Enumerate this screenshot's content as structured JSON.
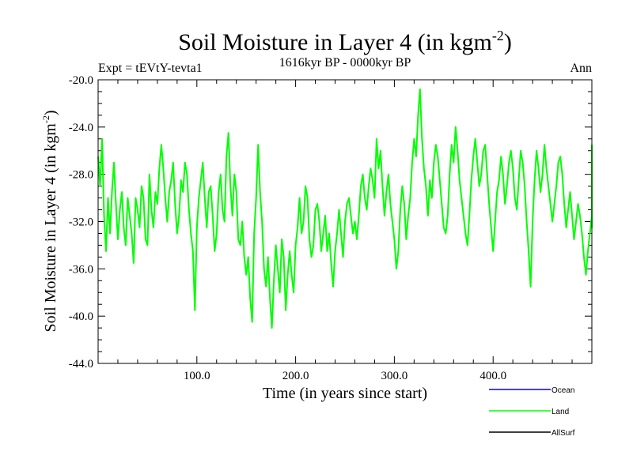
{
  "chart_data": {
    "type": "line",
    "title": "Soil Moisture in Layer 4 (in kgm",
    "title_sup": "-2",
    "title_close": ")",
    "subtitle": "1616kyr BP - 0000kyr BP",
    "left_label": "Expt = tEVtY-tevta1",
    "right_label": "Ann",
    "xlabel": "Time (in years since start)",
    "ylabel": "Soil Moisture in Layer 4 (in kgm",
    "ylabel_sup": "-2",
    "ylabel_close": ")",
    "xlim": [
      0,
      500
    ],
    "ylim": [
      -44,
      -20
    ],
    "x_ticks": [
      100,
      200,
      300,
      400
    ],
    "x_tick_labels": [
      "100.0",
      "200.0",
      "300.0",
      "400.0"
    ],
    "y_ticks": [
      -20,
      -24,
      -28,
      -32,
      -36,
      -40,
      -44
    ],
    "y_tick_labels": [
      "-20.0",
      "-24.0",
      "-28.0",
      "-32.0",
      "-36.0",
      "-40.0",
      "-44.0"
    ],
    "series": [
      {
        "name": "Land",
        "color": "#00ff00",
        "x_start": 0,
        "x_step": 2,
        "values": [
          -26.5,
          -29.0,
          -25.0,
          -31.5,
          -34.5,
          -30.0,
          -33.0,
          -29.5,
          -27.0,
          -30.5,
          -33.5,
          -31.0,
          -29.5,
          -32.5,
          -34.0,
          -30.0,
          -31.5,
          -33.0,
          -35.5,
          -30.0,
          -31.0,
          -32.5,
          -29.0,
          -30.0,
          -33.5,
          -34.0,
          -28.0,
          -31.0,
          -32.5,
          -29.5,
          -30.5,
          -27.5,
          -25.5,
          -27.5,
          -30.0,
          -32.0,
          -29.5,
          -28.5,
          -27.0,
          -30.5,
          -33.0,
          -31.5,
          -28.5,
          -29.5,
          -27.0,
          -28.0,
          -31.0,
          -33.0,
          -34.5,
          -39.5,
          -32.5,
          -30.0,
          -28.5,
          -27.0,
          -30.0,
          -32.5,
          -29.5,
          -29.0,
          -31.5,
          -34.5,
          -33.0,
          -29.5,
          -28.0,
          -31.0,
          -32.0,
          -26.5,
          -24.5,
          -29.0,
          -31.5,
          -28.0,
          -29.5,
          -33.5,
          -34.0,
          -32.0,
          -35.0,
          -36.5,
          -35.0,
          -38.5,
          -40.5,
          -33.0,
          -30.0,
          -25.5,
          -29.5,
          -32.0,
          -36.0,
          -37.5,
          -35.0,
          -38.5,
          -41.0,
          -37.0,
          -34.0,
          -36.0,
          -38.0,
          -33.5,
          -35.0,
          -39.5,
          -36.5,
          -34.5,
          -36.5,
          -38.0,
          -34.0,
          -32.5,
          -30.0,
          -33.0,
          -32.0,
          -29.0,
          -30.0,
          -33.5,
          -35.0,
          -34.0,
          -31.0,
          -30.5,
          -32.0,
          -34.5,
          -33.0,
          -31.5,
          -34.5,
          -33.0,
          -35.5,
          -37.5,
          -34.5,
          -33.0,
          -31.0,
          -33.0,
          -35.0,
          -32.0,
          -30.5,
          -30.0,
          -31.5,
          -33.0,
          -32.0,
          -33.5,
          -31.5,
          -29.0,
          -28.0,
          -30.0,
          -31.0,
          -29.0,
          -27.5,
          -28.5,
          -30.0,
          -25.0,
          -27.5,
          -26.0,
          -29.0,
          -31.5,
          -29.5,
          -28.0,
          -30.5,
          -32.0,
          -33.5,
          -36.0,
          -34.5,
          -31.0,
          -29.0,
          -30.5,
          -33.5,
          -31.5,
          -30.0,
          -27.0,
          -25.0,
          -26.5,
          -23.0,
          -20.8,
          -25.0,
          -27.5,
          -29.0,
          -31.5,
          -28.5,
          -30.0,
          -27.0,
          -25.5,
          -26.5,
          -28.5,
          -30.5,
          -32.5,
          -33.0,
          -31.5,
          -28.0,
          -25.5,
          -27.0,
          -24.0,
          -26.0,
          -28.5,
          -30.0,
          -31.5,
          -33.0,
          -34.0,
          -31.5,
          -28.5,
          -26.5,
          -25.0,
          -27.0,
          -29.0,
          -28.0,
          -26.0,
          -25.5,
          -28.0,
          -30.5,
          -32.5,
          -34.5,
          -32.0,
          -29.5,
          -28.5,
          -26.5,
          -28.0,
          -30.5,
          -29.0,
          -27.0,
          -26.0,
          -27.5,
          -30.0,
          -31.0,
          -28.5,
          -26.0,
          -27.0,
          -29.0,
          -32.0,
          -34.5,
          -37.5,
          -32.0,
          -28.5,
          -26.0,
          -27.5,
          -29.5,
          -28.0,
          -25.5,
          -27.5,
          -29.0,
          -30.5,
          -32.0,
          -30.5,
          -29.0,
          -27.0,
          -26.5,
          -28.0,
          -30.5,
          -32.5,
          -31.0,
          -29.5,
          -31.5,
          -33.5,
          -32.0,
          -30.5,
          -31.5,
          -33.0,
          -35.0,
          -36.5,
          -34.5,
          -33.0,
          -31.5,
          -32.5,
          -29.5,
          -27.0,
          -25.5
        ]
      }
    ],
    "legend": {
      "placement": "bottom-right",
      "entries": [
        {
          "name": "Ocean",
          "color": "#0000ff"
        },
        {
          "name": "Land",
          "color": "#00ff00"
        },
        {
          "name": "AllSurf",
          "color": "#000000"
        }
      ]
    }
  }
}
